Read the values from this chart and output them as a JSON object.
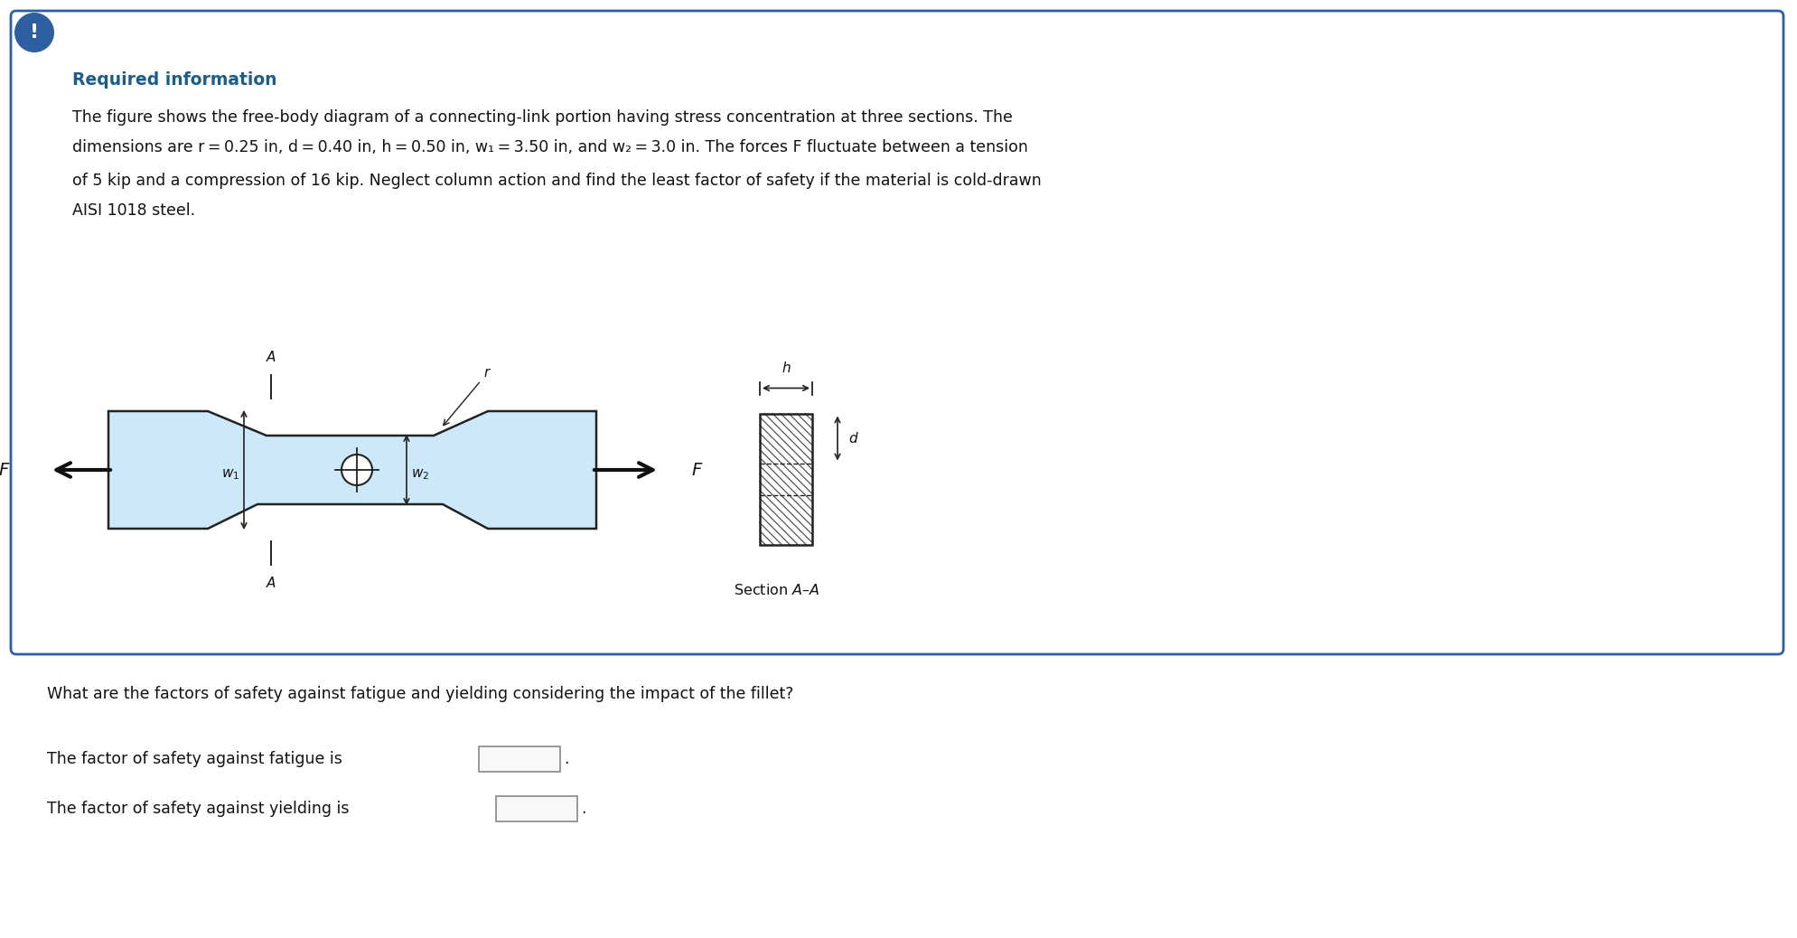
{
  "bg_color": "#ffffff",
  "border_color": "#2d5fa0",
  "alert_bg": "#2d5fa0",
  "title_color": "#1a5c8a",
  "title_text": "Required information",
  "line1": "The figure shows the free-body diagram of a connecting-link portion having stress concentration at three sections. The",
  "line2": "dimensions are r = 0.25 in, d = 0.40 in, h = 0.50 in, w₁ = 3.50 in, and w₂ = 3.0 in. The forces F fluctuate between a tension",
  "line3": "of 5 kip and a compression of 16 kip. Neglect column action and find the least factor of safety if the material is cold-drawn",
  "line4": "AISI 1018 steel.",
  "q_text": "What are the factors of safety against fatigue and yielding considering the impact of the fillet?",
  "fatigue_label": "The factor of safety against fatigue is",
  "yield_label": "The factor of safety against yielding is",
  "link_fill": "#cde8f8",
  "link_edge": "#222222",
  "dim_color": "#222222",
  "text_color": "#111111",
  "hatch_color": "#555555"
}
